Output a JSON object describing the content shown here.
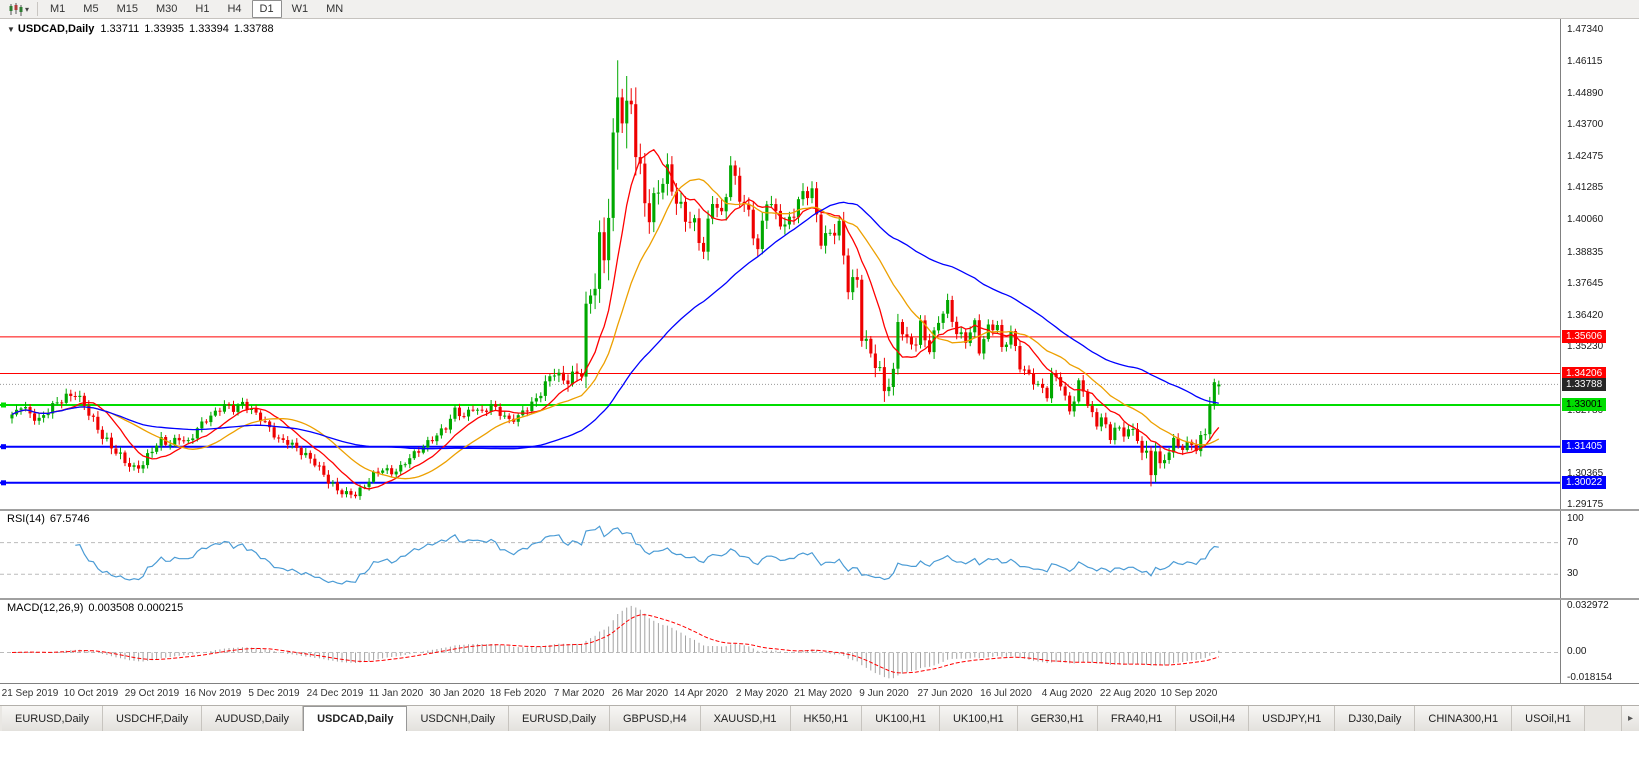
{
  "toolbar": {
    "caret": "▾",
    "timeframes": [
      {
        "label": "M1",
        "active": false
      },
      {
        "label": "M5",
        "active": false
      },
      {
        "label": "M15",
        "active": false
      },
      {
        "label": "M30",
        "active": false
      },
      {
        "label": "H1",
        "active": false
      },
      {
        "label": "H4",
        "active": false
      },
      {
        "label": "D1",
        "active": true
      },
      {
        "label": "W1",
        "active": false
      },
      {
        "label": "MN",
        "active": false
      }
    ]
  },
  "chart": {
    "header": {
      "toggle_glyph": "▼",
      "symbol_period": "USDCAD,Daily",
      "open": "1.33711",
      "high": "1.33935",
      "low": "1.33394",
      "close": "1.33788"
    },
    "price_axis": {
      "labels": [
        "1.47340",
        "1.46115",
        "1.44890",
        "1.43700",
        "1.42475",
        "1.41285",
        "1.40060",
        "1.38835",
        "1.37645",
        "1.36420",
        "1.35230",
        "1.32780",
        "1.30365",
        "1.29175"
      ],
      "badges": [
        {
          "value": "1.35606",
          "price": 1.35606,
          "bg": "#ff0000",
          "fg": "#ffffff",
          "name": "resistance-badge-1"
        },
        {
          "value": "1.34206",
          "price": 1.34206,
          "bg": "#ff0000",
          "fg": "#ffffff",
          "name": "resistance-badge-2"
        },
        {
          "value": "1.33788",
          "price": 1.33788,
          "bg": "#262626",
          "fg": "#ffffff",
          "name": "current-price-badge"
        },
        {
          "value": "1.33001",
          "price": 1.33001,
          "bg": "#00dd00",
          "fg": "#000000",
          "name": "support-badge-green"
        },
        {
          "value": "1.31405",
          "price": 1.31405,
          "bg": "#0000ff",
          "fg": "#ffffff",
          "name": "support-badge-blue-1"
        },
        {
          "value": "1.30022",
          "price": 1.30022,
          "bg": "#0000ff",
          "fg": "#ffffff",
          "name": "support-badge-blue-2"
        }
      ]
    },
    "hlines": [
      {
        "price": 1.35606,
        "color": "#ff0000",
        "width": 1,
        "handles": false
      },
      {
        "price": 1.34206,
        "color": "#ff0000",
        "width": 1,
        "handles": false
      },
      {
        "price": 1.33001,
        "color": "#00dd00",
        "width": 2,
        "handles": true
      },
      {
        "price": 1.31405,
        "color": "#0000ff",
        "width": 2,
        "handles": true
      },
      {
        "price": 1.30022,
        "color": "#0000ff",
        "width": 2,
        "handles": true
      }
    ],
    "current_price": 1.33788
  },
  "rsi": {
    "name": "RSI(14)",
    "value": "67.5746",
    "levels": [
      70,
      30
    ],
    "axis_labels": [
      {
        "text": "100",
        "v": 100
      },
      {
        "text": "70",
        "v": 70
      },
      {
        "text": "30",
        "v": 30
      }
    ]
  },
  "macd": {
    "name": "MACD(12,26,9)",
    "value": "0.003508 0.000215",
    "axis_labels": [
      {
        "text": "0.032972",
        "v": 0.032972
      },
      {
        "text": "0.00",
        "v": 0
      },
      {
        "text": "-0.018154",
        "v": -0.018154
      }
    ]
  },
  "date_axis": {
    "labels": [
      "21 Sep 2019",
      "10 Oct 2019",
      "29 Oct 2019",
      "16 Nov 2019",
      "5 Dec 2019",
      "24 Dec 2019",
      "11 Jan 2020",
      "30 Jan 2020",
      "18 Feb 2020",
      "7 Mar 2020",
      "26 Mar 2020",
      "14 Apr 2020",
      "2 May 2020",
      "21 May 2020",
      "9 Jun 2020",
      "27 Jun 2020",
      "16 Jul 2020",
      "4 Aug 2020",
      "22 Aug 2020",
      "10 Sep 2020"
    ]
  },
  "tabs": {
    "active_index": 3,
    "scroll_right": "▸",
    "items": [
      "EURUSD,Daily",
      "USDCHF,Daily",
      "AUDUSD,Daily",
      "USDCAD,Daily",
      "USDCNH,Daily",
      "EURUSD,Daily",
      "GBPUSD,H4",
      "XAUUSD,H1",
      "HK50,H1",
      "UK100,H1",
      "UK100,H1",
      "GER30,H1",
      "FRA40,H1",
      "USOil,H4",
      "USDJPY,H1",
      "DJ30,Daily",
      "CHINA300,H1",
      "USOil,H1"
    ]
  },
  "chart_data": {
    "type": "candlestick",
    "symbol": "USDCAD",
    "timeframe": "Daily",
    "candle_count": 268,
    "x0": 12,
    "x_step": 4.52,
    "body_width": 3.1,
    "ylim": [
      1.2902,
      1.4777
    ],
    "rsi_ylim": [
      0,
      110
    ],
    "macd_ylim": [
      -0.0195,
      0.0335
    ],
    "label_first_index": 4,
    "label_step": 13.5,
    "last_candle": {
      "open": 1.33711,
      "high": 1.33935,
      "low": 1.33394,
      "close": 1.33788
    },
    "close_anchors": [
      [
        0,
        1.3255
      ],
      [
        2,
        1.33
      ],
      [
        4,
        1.3265
      ],
      [
        6,
        1.324
      ],
      [
        8,
        1.328
      ],
      [
        10,
        1.331
      ],
      [
        12,
        1.333
      ],
      [
        14,
        1.3342
      ],
      [
        16,
        1.33
      ],
      [
        18,
        1.324
      ],
      [
        20,
        1.318
      ],
      [
        22,
        1.314
      ],
      [
        25,
        1.3085
      ],
      [
        27,
        1.3055
      ],
      [
        29,
        1.3075
      ],
      [
        31,
        1.313
      ],
      [
        33,
        1.3165
      ],
      [
        35,
        1.315
      ],
      [
        37,
        1.3175
      ],
      [
        39,
        1.3155
      ],
      [
        41,
        1.321
      ],
      [
        43,
        1.3245
      ],
      [
        45,
        1.327
      ],
      [
        47,
        1.33
      ],
      [
        49,
        1.3285
      ],
      [
        51,
        1.3305
      ],
      [
        53,
        1.328
      ],
      [
        55,
        1.325
      ],
      [
        57,
        1.321
      ],
      [
        59,
        1.3165
      ],
      [
        61,
        1.316
      ],
      [
        64,
        1.312
      ],
      [
        67,
        1.308
      ],
      [
        70,
        1.301
      ],
      [
        72,
        1.2975
      ],
      [
        74,
        1.296
      ],
      [
        76,
        1.2958
      ],
      [
        78,
        1.299
      ],
      [
        80,
        1.3035
      ],
      [
        82,
        1.3055
      ],
      [
        84,
        1.304
      ],
      [
        86,
        1.306
      ],
      [
        88,
        1.31
      ],
      [
        90,
        1.3125
      ],
      [
        92,
        1.3155
      ],
      [
        94,
        1.3185
      ],
      [
        96,
        1.3215
      ],
      [
        98,
        1.328
      ],
      [
        100,
        1.3255
      ],
      [
        102,
        1.329
      ],
      [
        104,
        1.327
      ],
      [
        106,
        1.33
      ],
      [
        108,
        1.327
      ],
      [
        110,
        1.324
      ],
      [
        112,
        1.3255
      ],
      [
        114,
        1.329
      ],
      [
        116,
        1.332
      ],
      [
        118,
        1.338
      ],
      [
        120,
        1.343
      ],
      [
        122,
        1.339
      ],
      [
        124,
        1.341
      ],
      [
        126,
        1.343
      ],
      [
        127,
        1.366
      ],
      [
        128,
        1.372
      ],
      [
        129,
        1.378
      ],
      [
        130,
        1.392
      ],
      [
        131,
        1.386
      ],
      [
        132,
        1.406
      ],
      [
        133,
        1.428
      ],
      [
        134,
        1.45
      ],
      [
        135,
        1.443
      ],
      [
        136,
        1.44
      ],
      [
        137,
        1.447
      ],
      [
        138,
        1.428
      ],
      [
        139,
        1.418
      ],
      [
        140,
        1.409
      ],
      [
        141,
        1.402
      ],
      [
        143,
        1.413
      ],
      [
        145,
        1.419
      ],
      [
        147,
        1.408
      ],
      [
        149,
        1.402
      ],
      [
        151,
        1.399
      ],
      [
        153,
        1.389
      ],
      [
        155,
        1.409
      ],
      [
        157,
        1.402
      ],
      [
        159,
        1.4215
      ],
      [
        161,
        1.41
      ],
      [
        163,
        1.403
      ],
      [
        165,
        1.389
      ],
      [
        167,
        1.409
      ],
      [
        169,
        1.403
      ],
      [
        171,
        1.398
      ],
      [
        173,
        1.404
      ],
      [
        175,
        1.411
      ],
      [
        177,
        1.4115
      ],
      [
        179,
        1.393
      ],
      [
        181,
        1.3955
      ],
      [
        183,
        1.3985
      ],
      [
        185,
        1.3755
      ],
      [
        187,
        1.378
      ],
      [
        188,
        1.3565
      ],
      [
        190,
        1.35
      ],
      [
        192,
        1.342
      ],
      [
        193,
        1.336
      ],
      [
        195,
        1.3415
      ],
      [
        196,
        1.3625
      ],
      [
        198,
        1.354
      ],
      [
        200,
        1.354
      ],
      [
        201,
        1.3605
      ],
      [
        203,
        1.351
      ],
      [
        205,
        1.3625
      ],
      [
        207,
        1.3685
      ],
      [
        209,
        1.3575
      ],
      [
        211,
        1.355
      ],
      [
        213,
        1.361
      ],
      [
        214,
        1.351
      ],
      [
        216,
        1.3595
      ],
      [
        218,
        1.3605
      ],
      [
        219,
        1.351
      ],
      [
        221,
        1.358
      ],
      [
        223,
        1.345
      ],
      [
        225,
        1.3412
      ],
      [
        227,
        1.3375
      ],
      [
        229,
        1.334
      ],
      [
        230,
        1.3415
      ],
      [
        232,
        1.3385
      ],
      [
        234,
        1.327
      ],
      [
        236,
        1.3385
      ],
      [
        238,
        1.331
      ],
      [
        240,
        1.3215
      ],
      [
        241,
        1.3265
      ],
      [
        243,
        1.3165
      ],
      [
        244,
        1.3225
      ],
      [
        246,
        1.318
      ],
      [
        247,
        1.322
      ],
      [
        249,
        1.3165
      ],
      [
        251,
        1.31
      ],
      [
        252,
        1.304
      ],
      [
        253,
        1.314
      ],
      [
        254,
        1.306
      ],
      [
        255,
        1.3095
      ],
      [
        257,
        1.316
      ],
      [
        259,
        1.3135
      ],
      [
        261,
        1.3155
      ],
      [
        262,
        1.313
      ],
      [
        263,
        1.317
      ],
      [
        264,
        1.32
      ],
      [
        265,
        1.331
      ],
      [
        266,
        1.3371
      ],
      [
        267,
        1.33788
      ]
    ],
    "range_anchors": [
      [
        0,
        0.006
      ],
      [
        20,
        0.007
      ],
      [
        45,
        0.005
      ],
      [
        70,
        0.006
      ],
      [
        76,
        0.0045
      ],
      [
        90,
        0.005
      ],
      [
        112,
        0.0055
      ],
      [
        120,
        0.008
      ],
      [
        126,
        0.011
      ],
      [
        128,
        0.018
      ],
      [
        131,
        0.022
      ],
      [
        133,
        0.03
      ],
      [
        134,
        0.045
      ],
      [
        135,
        0.034
      ],
      [
        137,
        0.026
      ],
      [
        139,
        0.02
      ],
      [
        143,
        0.015
      ],
      [
        150,
        0.012
      ],
      [
        160,
        0.011
      ],
      [
        170,
        0.01
      ],
      [
        180,
        0.0095
      ],
      [
        185,
        0.012
      ],
      [
        190,
        0.01
      ],
      [
        193,
        0.013
      ],
      [
        197,
        0.009
      ],
      [
        205,
        0.008
      ],
      [
        215,
        0.007
      ],
      [
        225,
        0.0065
      ],
      [
        235,
        0.0065
      ],
      [
        245,
        0.006
      ],
      [
        250,
        0.009
      ],
      [
        252,
        0.015
      ],
      [
        254,
        0.008
      ],
      [
        258,
        0.006
      ],
      [
        263,
        0.007
      ],
      [
        265,
        0.01
      ],
      [
        267,
        0.005
      ]
    ],
    "overlays": [
      {
        "name": "MA-fast",
        "period": 10,
        "color": "#ff0000"
      },
      {
        "name": "MA-mid",
        "period": 21,
        "color": "#eda000"
      },
      {
        "name": "MA-slow",
        "period": 55,
        "color": "#0000ff"
      }
    ],
    "indicators": {
      "rsi": {
        "period": 14,
        "current": 67.5746,
        "color": "#4a9bd5"
      },
      "macd": {
        "fast": 12,
        "slow": 26,
        "signal": 9,
        "current_macd": 0.003508,
        "current_signal": 0.000215
      }
    },
    "colors": {
      "up": "#00a800",
      "down": "#ee0000",
      "level_dash": "#bbbbbb",
      "macd_hist": "#a3a3a3",
      "macd_signal": "#ff0000",
      "bid_line": "#9a9a9a"
    }
  }
}
